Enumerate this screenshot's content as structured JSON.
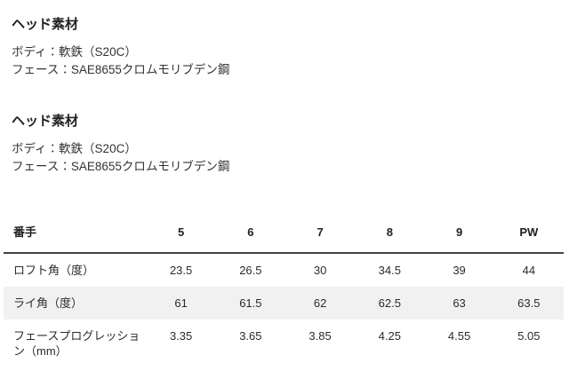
{
  "sections": [
    {
      "heading": "ヘッド素材",
      "body_line": "ボディ：軟鉄（S20C）",
      "face_line": "フェース：SAE8655クロムモリブデン鋼"
    },
    {
      "heading": "ヘッド素材",
      "body_line": "ボディ：軟鉄（S20C）",
      "face_line": "フェース：SAE8655クロムモリブデン鋼"
    }
  ],
  "spec_table": {
    "header": {
      "label": "番手",
      "clubs": [
        "5",
        "6",
        "7",
        "8",
        "9",
        "PW"
      ]
    },
    "rows": [
      {
        "label": "ロフト角（度）",
        "values": [
          "23.5",
          "26.5",
          "30",
          "34.5",
          "39",
          "44"
        ]
      },
      {
        "label": "ライ角（度）",
        "values": [
          "61",
          "61.5",
          "62",
          "62.5",
          "63",
          "63.5"
        ]
      },
      {
        "label": "フェースプログレッション（mm）",
        "values": [
          "3.35",
          "3.65",
          "3.85",
          "4.25",
          "4.55",
          "5.05"
        ]
      }
    ],
    "stripe_color": "#f1f1f1",
    "header_rule_color": "#444444"
  }
}
